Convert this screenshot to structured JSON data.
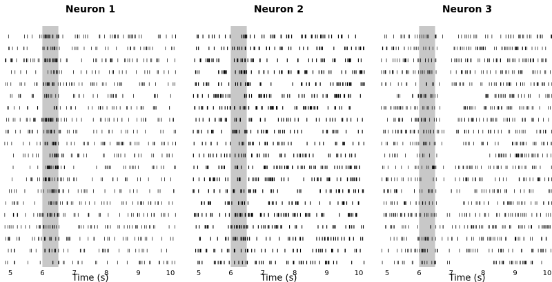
{
  "chart_data": [
    {
      "type": "raster",
      "title": "Neuron 1",
      "xlabel": "Time (s)",
      "ylabel": "",
      "xlim": [
        4.8,
        10.2
      ],
      "xticks": [
        5,
        6,
        7,
        8,
        9,
        10
      ],
      "trials": 20,
      "shaded_interval": [
        6.0,
        6.5
      ],
      "shade_color": "#c8c8c8",
      "spike_color": "#000000",
      "grid": false,
      "legend": "none"
    },
    {
      "type": "raster",
      "title": "Neuron 2",
      "xlabel": "Time (s)",
      "ylabel": "",
      "xlim": [
        4.8,
        10.2
      ],
      "xticks": [
        5,
        6,
        7,
        8,
        9,
        10
      ],
      "trials": 20,
      "shaded_interval": [
        6.0,
        6.5
      ],
      "shade_color": "#c8c8c8",
      "spike_color": "#000000",
      "grid": false,
      "legend": "none"
    },
    {
      "type": "raster",
      "title": "Neuron 3",
      "xlabel": "Time (s)",
      "ylabel": "",
      "xlim": [
        4.8,
        10.2
      ],
      "xticks": [
        5,
        6,
        7,
        8,
        9,
        10
      ],
      "trials": 20,
      "shaded_interval": [
        6.0,
        6.5
      ],
      "shade_color": "#c8c8c8",
      "spike_color": "#000000",
      "grid": false,
      "legend": "none"
    }
  ]
}
